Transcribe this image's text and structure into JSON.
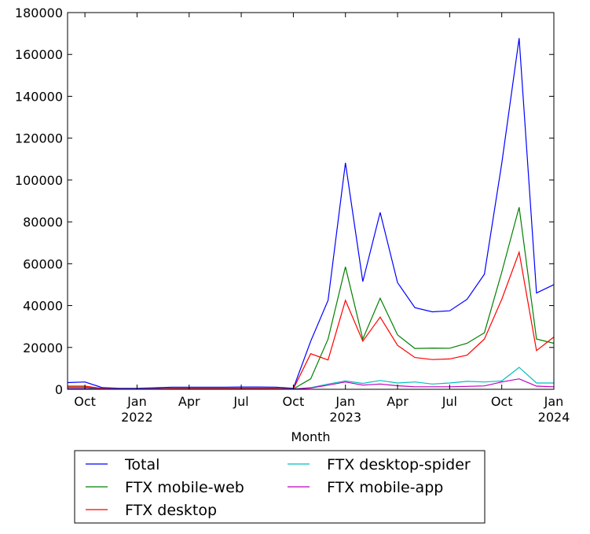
{
  "chart_data": {
    "type": "line",
    "title": "",
    "xlabel": "Month",
    "ylabel": "",
    "x_labels": [
      "2021-09",
      "2021-10",
      "2021-11",
      "2021-12",
      "2022-01",
      "2022-02",
      "2022-03",
      "2022-04",
      "2022-05",
      "2022-06",
      "2022-07",
      "2022-08",
      "2022-09",
      "2022-10",
      "2022-11",
      "2022-12",
      "2023-01",
      "2023-02",
      "2023-03",
      "2023-04",
      "2023-05",
      "2023-06",
      "2023-07",
      "2023-08",
      "2023-09",
      "2023-10",
      "2023-11",
      "2023-12",
      "2024-01"
    ],
    "x_ticks": [
      {
        "month": "2021-10",
        "label": "Oct",
        "year": ""
      },
      {
        "month": "2022-01",
        "label": "Jan",
        "year": "2022"
      },
      {
        "month": "2022-04",
        "label": "Apr",
        "year": ""
      },
      {
        "month": "2022-07",
        "label": "Jul",
        "year": ""
      },
      {
        "month": "2022-10",
        "label": "Oct",
        "year": ""
      },
      {
        "month": "2023-01",
        "label": "Jan",
        "year": "2023"
      },
      {
        "month": "2023-04",
        "label": "Apr",
        "year": ""
      },
      {
        "month": "2023-07",
        "label": "Jul",
        "year": ""
      },
      {
        "month": "2023-10",
        "label": "Oct",
        "year": ""
      },
      {
        "month": "2024-01",
        "label": "Jan",
        "year": "2024"
      }
    ],
    "ylim": [
      0,
      180000
    ],
    "y_ticks": [
      0,
      20000,
      40000,
      60000,
      80000,
      100000,
      120000,
      140000,
      160000,
      180000
    ],
    "grid": false,
    "legend_position": "below",
    "series": [
      {
        "name": "Total",
        "color": "#0000ff",
        "values": [
          3200,
          3500,
          800,
          500,
          500,
          700,
          1000,
          1000,
          1000,
          1000,
          1100,
          1100,
          1000,
          500,
          23000,
          42500,
          108200,
          51500,
          84500,
          51000,
          39000,
          37000,
          37500,
          43000,
          55000,
          108000,
          167800,
          46000,
          50000
        ]
      },
      {
        "name": "FTX mobile-web",
        "color": "#008000",
        "values": [
          1000,
          1000,
          300,
          200,
          200,
          300,
          400,
          400,
          400,
          400,
          400,
          400,
          400,
          200,
          5000,
          24000,
          58500,
          24000,
          43500,
          26000,
          19500,
          19700,
          19600,
          22000,
          27000,
          56000,
          87000,
          24000,
          22000
        ]
      },
      {
        "name": "FTX desktop",
        "color": "#ff0000",
        "values": [
          1500,
          1500,
          400,
          200,
          200,
          300,
          500,
          500,
          500,
          500,
          500,
          500,
          500,
          200,
          17000,
          14000,
          42500,
          23000,
          34500,
          21000,
          15200,
          14200,
          14500,
          16300,
          24000,
          43000,
          65500,
          18500,
          25000
        ]
      },
      {
        "name": "FTX desktop-spider",
        "color": "#00bfbf",
        "values": [
          400,
          400,
          200,
          200,
          200,
          200,
          200,
          200,
          200,
          200,
          200,
          200,
          200,
          200,
          800,
          2500,
          4000,
          2800,
          4200,
          3000,
          3500,
          2500,
          3000,
          3800,
          3500,
          4000,
          10500,
          3000,
          3000
        ]
      },
      {
        "name": "FTX mobile-app",
        "color": "#bf00bf",
        "values": [
          300,
          300,
          100,
          100,
          100,
          100,
          100,
          100,
          100,
          100,
          100,
          100,
          100,
          100,
          600,
          2000,
          3500,
          2000,
          2500,
          1700,
          1200,
          1200,
          1200,
          1400,
          1600,
          3500,
          5000,
          1500,
          1200
        ]
      }
    ]
  }
}
